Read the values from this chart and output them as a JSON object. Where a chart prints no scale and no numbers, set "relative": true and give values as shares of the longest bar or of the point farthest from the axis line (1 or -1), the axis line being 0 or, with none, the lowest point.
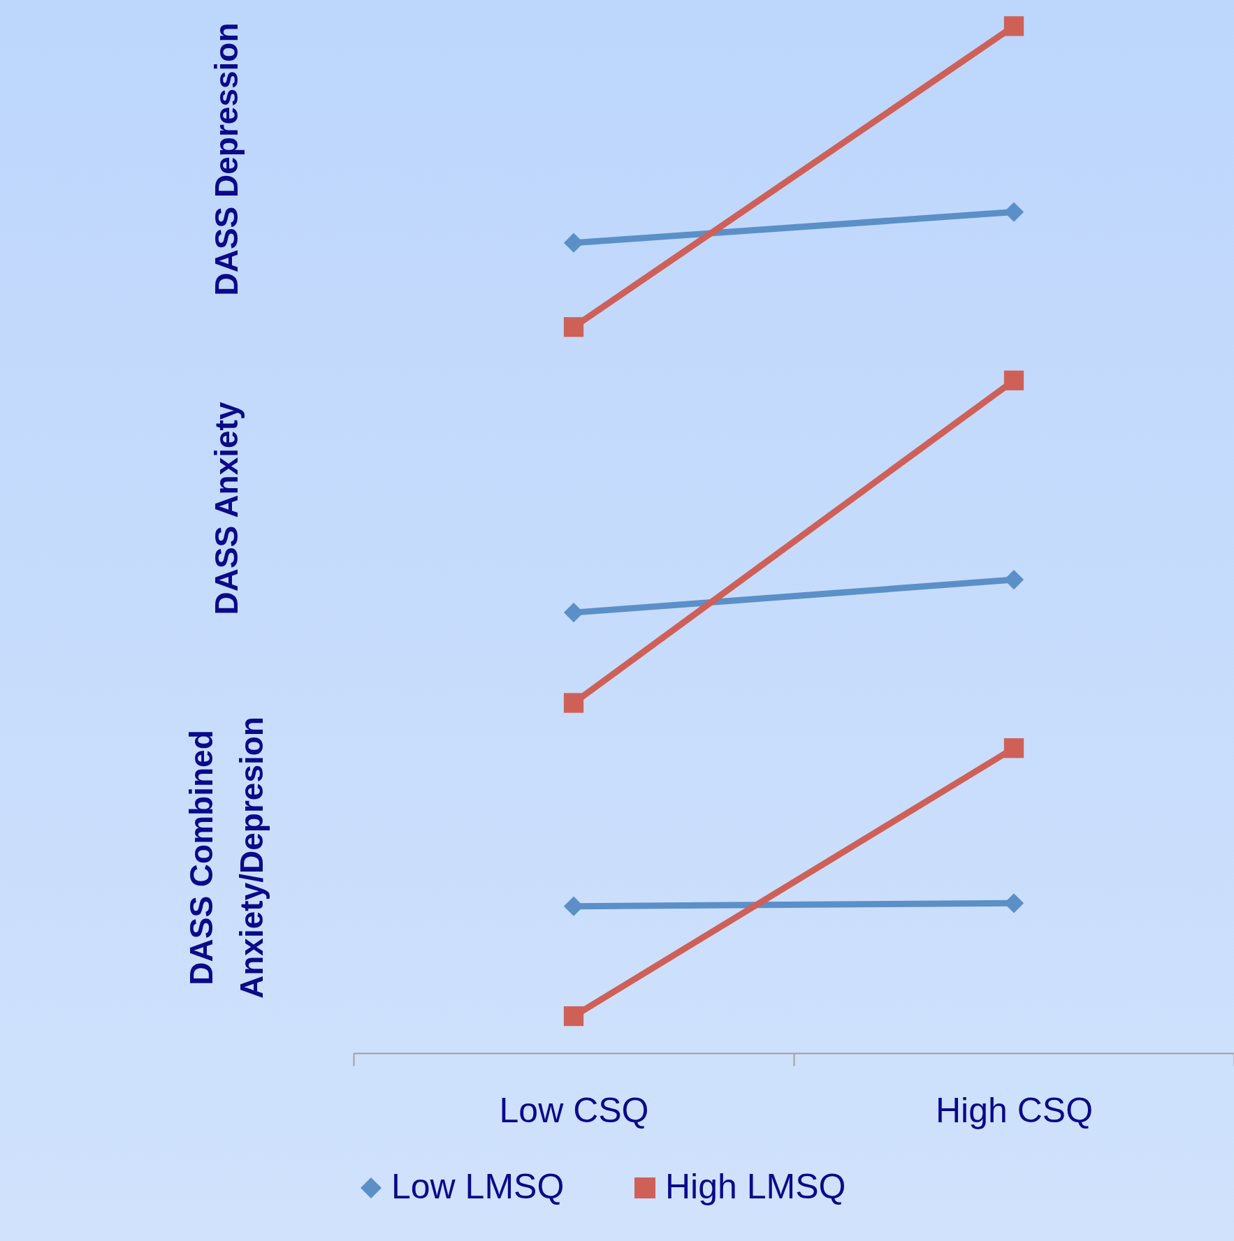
{
  "chart_data": {
    "type": "line",
    "categories": [
      "Low CSQ",
      "High CSQ"
    ],
    "relative": true,
    "legend": "bottom",
    "annotations": [
      "DASS Depression",
      "DASS Anxiety",
      "DASS Combined Anxiety/Depresion"
    ],
    "series": [
      {
        "name": "Low LMSQ",
        "color": "#5b8fc8",
        "marker": "diamond",
        "values": [
          0.789,
          0.819
        ]
      },
      {
        "name": "High LMSQ",
        "color": "#cf6058",
        "marker": "square",
        "values": [
          0.707,
          1
        ]
      },
      {
        "color": "#5b8fc8",
        "marker": "diamond",
        "values": [
          0.429,
          0.461
        ]
      },
      {
        "color": "#cf6058",
        "marker": "square",
        "values": [
          0.341,
          0.655
        ]
      },
      {
        "color": "#5b8fc8",
        "marker": "diamond",
        "values": [
          0.143,
          0.146
        ]
      },
      {
        "color": "#cf6058",
        "marker": "square",
        "values": [
          0.036,
          0.297
        ]
      }
    ]
  }
}
